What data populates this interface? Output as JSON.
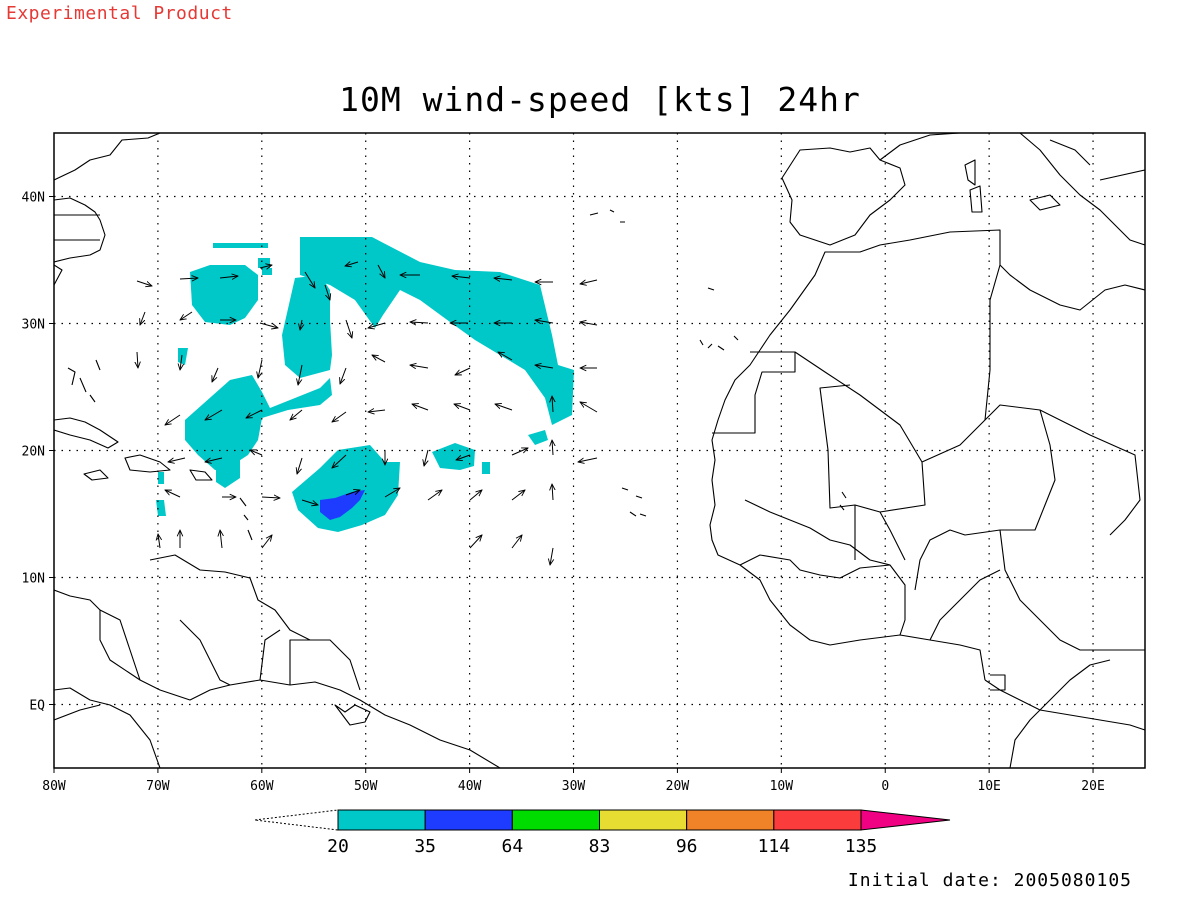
{
  "header": {
    "badge": "Experimental Product",
    "title": "10M wind-speed [kts] 24hr"
  },
  "footer": {
    "initial_date": "Initial date: 2005080105"
  },
  "map": {
    "lon_range": [
      -80,
      25
    ],
    "lat_range": [
      -5,
      45
    ],
    "lon_ticks": [
      {
        "value": -80,
        "label": "80W"
      },
      {
        "value": -70,
        "label": "70W"
      },
      {
        "value": -60,
        "label": "60W"
      },
      {
        "value": -50,
        "label": "50W"
      },
      {
        "value": -40,
        "label": "40W"
      },
      {
        "value": -30,
        "label": "30W"
      },
      {
        "value": -20,
        "label": "20W"
      },
      {
        "value": -10,
        "label": "10W"
      },
      {
        "value": 0,
        "label": "0"
      },
      {
        "value": 10,
        "label": "10E"
      },
      {
        "value": 20,
        "label": "20E"
      }
    ],
    "lat_ticks": [
      {
        "value": 40,
        "label": "40N"
      },
      {
        "value": 30,
        "label": "30N"
      },
      {
        "value": 20,
        "label": "20N"
      },
      {
        "value": 10,
        "label": "10N"
      },
      {
        "value": 0,
        "label": "EQ"
      }
    ],
    "colors": {
      "band_20_35": "#00c8c8",
      "band_35_64": "#1e3cff",
      "land_outline": "#000000"
    }
  },
  "colorbar": {
    "labels": [
      "20",
      "35",
      "64",
      "83",
      "96",
      "114",
      "135"
    ],
    "colors": [
      "#00c8c8",
      "#1e3cff",
      "#00dc00",
      "#e6dc32",
      "#f08228",
      "#fa3c3c",
      "#f00082"
    ]
  }
}
